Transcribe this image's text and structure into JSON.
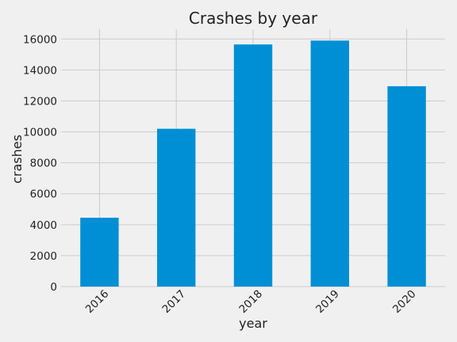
{
  "chart_data": {
    "type": "bar",
    "title": "Crashes by year",
    "xlabel": "year",
    "ylabel": "crashes",
    "categories": [
      "2016",
      "2017",
      "2018",
      "2019",
      "2020"
    ],
    "values": [
      4450,
      10200,
      15650,
      15900,
      12950
    ],
    "ylim": [
      0,
      16630
    ],
    "yticks": [
      0,
      2000,
      4000,
      6000,
      8000,
      10000,
      12000,
      14000,
      16000
    ],
    "grid": true,
    "legend": "none",
    "bar_color": "#008fd5",
    "background_color": "#f0f0f0",
    "grid_color": "#cbcbcb"
  }
}
